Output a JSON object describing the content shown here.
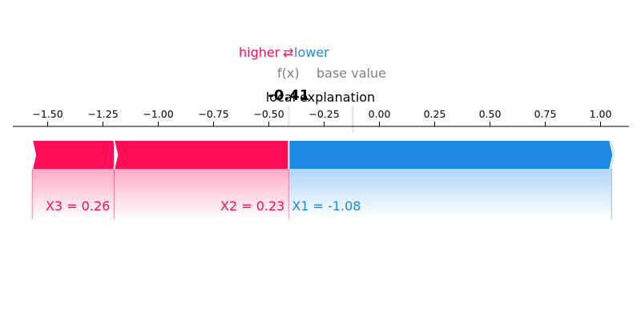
{
  "chart_data": {
    "type": "force",
    "title": "local explanation",
    "legend": {
      "higher_label": "higher",
      "lower_label": "lower",
      "arrow": "⇄"
    },
    "fx_label": "f(x)",
    "base_value_label": "base value",
    "output_value": -0.41,
    "output_value_text": "-0.41",
    "base_value": -0.12,
    "xlim": [
      -1.6,
      1.08
    ],
    "x_ticks": [
      -1.5,
      -1.25,
      -1.0,
      -0.75,
      -0.5,
      -0.25,
      0.0,
      0.25,
      0.5,
      0.75,
      1.0
    ],
    "x_tick_labels": [
      "−1.50",
      "−1.25",
      "−1.00",
      "−0.75",
      "−0.50",
      "−0.25",
      "0.00",
      "0.25",
      "0.50",
      "0.75",
      "1.00"
    ],
    "positive_features": [
      {
        "label": "X3 = 0.26",
        "start": -1.57,
        "end": -1.2
      },
      {
        "label": "X2 = 0.23",
        "start": -1.2,
        "end": -0.41
      }
    ],
    "negative_features": [
      {
        "label": "X1 = -1.08",
        "start": -0.41,
        "end": 1.05
      }
    ],
    "colors": {
      "positive": "#ff0d57",
      "negative": "#1e88e5",
      "text_gray": "#808080"
    }
  }
}
